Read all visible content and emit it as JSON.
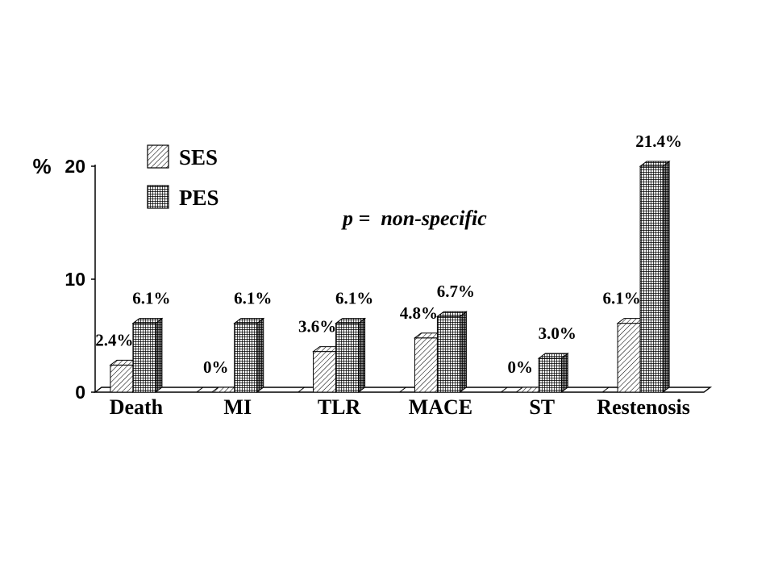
{
  "chart_data": {
    "type": "bar",
    "style": "3d",
    "categories": [
      "Death",
      "MI",
      "TLR",
      "MACE",
      "ST",
      "Restenosis"
    ],
    "series": [
      {
        "name": "SES",
        "pattern": "diagonal-hatch",
        "values": [
          2.4,
          0,
          3.6,
          4.8,
          0,
          6.1
        ],
        "labels": [
          "2.4%",
          "0%",
          "3.6%",
          "4.8%",
          "0%",
          "6.1%"
        ]
      },
      {
        "name": "PES",
        "pattern": "grid",
        "values": [
          6.1,
          6.1,
          6.1,
          6.7,
          3.0,
          21.4
        ],
        "labels": [
          "6.1%",
          "6.1%",
          "6.1%",
          "6.7%",
          "3.0%",
          "21.4%"
        ]
      }
    ],
    "ylabel": "%",
    "ylim": [
      0,
      20
    ],
    "yticks": [
      0,
      10,
      20
    ],
    "annotation": "p =  non-specific",
    "legend": "top-left",
    "grid": false
  },
  "colors": {
    "ink": "#000000",
    "background": "#ffffff",
    "side_face": "#808080"
  }
}
